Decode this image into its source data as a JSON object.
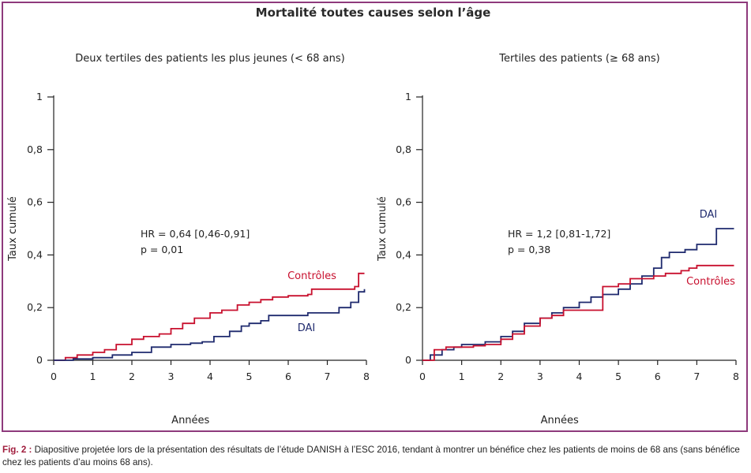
{
  "main_title": "Mortalité toutes causes selon l’âge",
  "caption": {
    "label": "Fig. 2 :",
    "text": "Diapositive projetée lors de la présentation des résultats de l’étude DANISH à l’ESC 2016, tendant à montrer un bénéfice chez les patients de moins de 68 ans (sans bénéfice chez les patients d’au moins 68 ans)."
  },
  "colors": {
    "frame": "#8e3a7c",
    "dai": "#1f2a6e",
    "controles": "#c8102e"
  },
  "chart_data": [
    {
      "type": "line",
      "title": "Deux tertiles des patients les plus jeunes (< 68 ans)",
      "xlabel": "Années",
      "ylabel": "Taux cumulé",
      "xlim": [
        0,
        8
      ],
      "ylim": [
        0,
        1
      ],
      "xticks": [
        "0",
        "1",
        "2",
        "3",
        "4",
        "5",
        "6",
        "7",
        "8"
      ],
      "yticks": [
        "0",
        "0,2",
        "0,4",
        "0,6",
        "0,8",
        "1"
      ],
      "annotation": [
        "HR = 0,64 [0,46-0,91]",
        "p = 0,01"
      ],
      "series": [
        {
          "name": "Contrôles",
          "color": "#c8102e",
          "x": [
            0,
            0.3,
            0.6,
            1,
            1.3,
            1.6,
            2,
            2.3,
            2.7,
            3,
            3.3,
            3.6,
            4,
            4.3,
            4.7,
            5,
            5.3,
            5.6,
            6,
            6.5,
            6.6,
            7,
            7.5,
            7.7,
            7.8,
            7.8,
            7.95
          ],
          "y": [
            0,
            0.01,
            0.02,
            0.03,
            0.04,
            0.06,
            0.08,
            0.09,
            0.1,
            0.12,
            0.14,
            0.16,
            0.18,
            0.19,
            0.21,
            0.22,
            0.23,
            0.24,
            0.245,
            0.25,
            0.27,
            0.27,
            0.27,
            0.28,
            0.28,
            0.33,
            0.33
          ]
        },
        {
          "name": "DAI",
          "color": "#1f2a6e",
          "x": [
            0,
            0.5,
            1,
            1.5,
            2,
            2.5,
            3,
            3.5,
            3.8,
            4.1,
            4.5,
            4.8,
            5,
            5.3,
            5.5,
            6,
            6.5,
            7,
            7.3,
            7.6,
            7.8,
            7.95
          ],
          "y": [
            0,
            0.005,
            0.01,
            0.02,
            0.03,
            0.05,
            0.06,
            0.065,
            0.07,
            0.09,
            0.11,
            0.13,
            0.14,
            0.15,
            0.17,
            0.17,
            0.18,
            0.18,
            0.2,
            0.22,
            0.26,
            0.27
          ]
        }
      ]
    },
    {
      "type": "line",
      "title": "Tertiles des patients (≥ 68 ans)",
      "xlabel": "Années",
      "ylabel": "Taux cumulé",
      "xlim": [
        0,
        8
      ],
      "ylim": [
        0,
        1
      ],
      "xticks": [
        "0",
        "1",
        "2",
        "3",
        "4",
        "5",
        "6",
        "7",
        "8"
      ],
      "yticks": [
        "0",
        "0,2",
        "0,4",
        "0,6",
        "0,8",
        "1"
      ],
      "annotation": [
        "HR = 1,2 [0,81-1,72]",
        "p = 0,38"
      ],
      "series": [
        {
          "name": "DAI",
          "color": "#1f2a6e",
          "x": [
            0,
            0.2,
            0.5,
            0.8,
            1,
            1.3,
            1.6,
            2,
            2.3,
            2.6,
            3,
            3.3,
            3.6,
            4,
            4.3,
            4.6,
            5,
            5.3,
            5.6,
            5.9,
            6.1,
            6.3,
            6.7,
            7,
            7.3,
            7.5,
            7.95
          ],
          "y": [
            0,
            0.02,
            0.04,
            0.05,
            0.06,
            0.06,
            0.07,
            0.09,
            0.11,
            0.14,
            0.16,
            0.18,
            0.2,
            0.22,
            0.24,
            0.25,
            0.27,
            0.29,
            0.32,
            0.35,
            0.39,
            0.41,
            0.42,
            0.44,
            0.44,
            0.5,
            0.5
          ]
        },
        {
          "name": "Contrôles",
          "color": "#c8102e",
          "x": [
            0,
            0.3,
            0.6,
            1,
            1.3,
            1.6,
            2,
            2.3,
            2.6,
            3,
            3.3,
            3.6,
            4,
            4.3,
            4.6,
            5,
            5.3,
            5.6,
            5.9,
            6.2,
            6.6,
            6.8,
            7,
            7.5,
            7.95
          ],
          "y": [
            0,
            0.04,
            0.05,
            0.05,
            0.055,
            0.06,
            0.08,
            0.1,
            0.13,
            0.16,
            0.17,
            0.19,
            0.19,
            0.19,
            0.28,
            0.29,
            0.31,
            0.31,
            0.32,
            0.33,
            0.34,
            0.35,
            0.36,
            0.36,
            0.36
          ]
        }
      ]
    }
  ]
}
